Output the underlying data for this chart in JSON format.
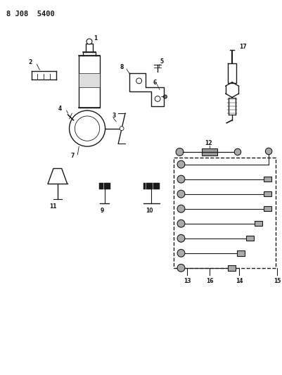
{
  "title": "8 J08  5400",
  "bg_color": "#ffffff",
  "fg_color": "#1a1a1a",
  "fig_width": 4.01,
  "fig_height": 5.33,
  "dpi": 100
}
